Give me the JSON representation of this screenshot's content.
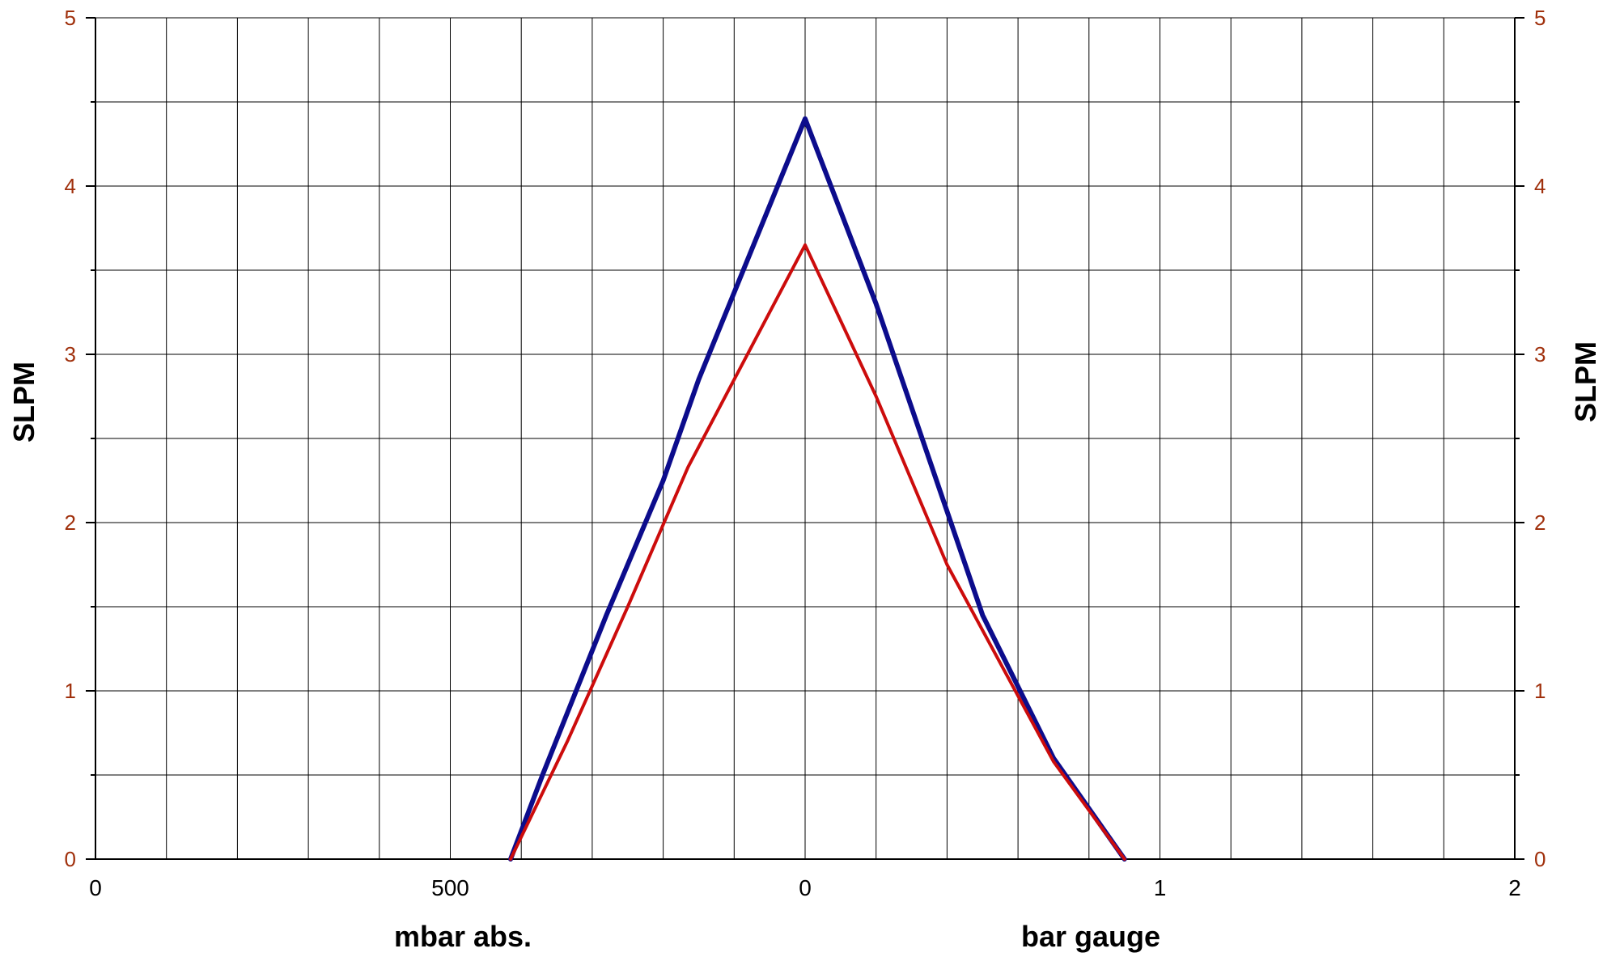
{
  "chart_data": {
    "type": "line",
    "grid": true,
    "ylim": [
      0,
      5
    ],
    "y_ticks": [
      "0",
      "1",
      "2",
      "3",
      "4",
      "5"
    ],
    "y_tick_color": "#a0300c",
    "ylabel_left": "SLPM",
    "ylabel_right": "SLPM",
    "x_ticks": [
      "0",
      "500",
      "0",
      "1",
      "2"
    ],
    "xlabel_left": "mbar abs.",
    "xlabel_right": "bar gauge",
    "x_grid_lines": 20,
    "x_domain_note_segments": [
      {
        "axis": "mbar abs.",
        "from": 1000,
        "to": 0
      },
      {
        "axis": "bar gauge",
        "from": 0,
        "to": 2
      }
    ],
    "series": [
      {
        "color": "#0c0c8c",
        "points": [
          {
            "section": "mbar abs.",
            "x": 415,
            "y": 0
          },
          {
            "section": "mbar abs.",
            "x": 370,
            "y": 0.5
          },
          {
            "section": "mbar abs.",
            "x": 280,
            "y": 1.45
          },
          {
            "section": "mbar abs.",
            "x": 200,
            "y": 2.25
          },
          {
            "section": "mbar abs.",
            "x": 150,
            "y": 2.85
          },
          {
            "section": "mbar abs.",
            "x": 0,
            "y": 4.4
          },
          {
            "section": "bar gauge",
            "x": 0.2,
            "y": 3.3
          },
          {
            "section": "bar gauge",
            "x": 0.5,
            "y": 1.45
          },
          {
            "section": "bar gauge",
            "x": 0.7,
            "y": 0.6
          },
          {
            "section": "bar gauge",
            "x": 0.9,
            "y": 0
          }
        ]
      },
      {
        "color": "#cc0c0c",
        "points": [
          {
            "section": "mbar abs.",
            "x": 415,
            "y": 0
          },
          {
            "section": "mbar abs.",
            "x": 335,
            "y": 0.7
          },
          {
            "section": "mbar abs.",
            "x": 250,
            "y": 1.5
          },
          {
            "section": "mbar abs.",
            "x": 165,
            "y": 2.33
          },
          {
            "section": "mbar abs.",
            "x": 0,
            "y": 3.65
          },
          {
            "section": "bar gauge",
            "x": 0.2,
            "y": 2.75
          },
          {
            "section": "bar gauge",
            "x": 0.4,
            "y": 1.75
          },
          {
            "section": "bar gauge",
            "x": 0.7,
            "y": 0.58
          },
          {
            "section": "bar gauge",
            "x": 0.9,
            "y": 0
          }
        ]
      }
    ]
  }
}
